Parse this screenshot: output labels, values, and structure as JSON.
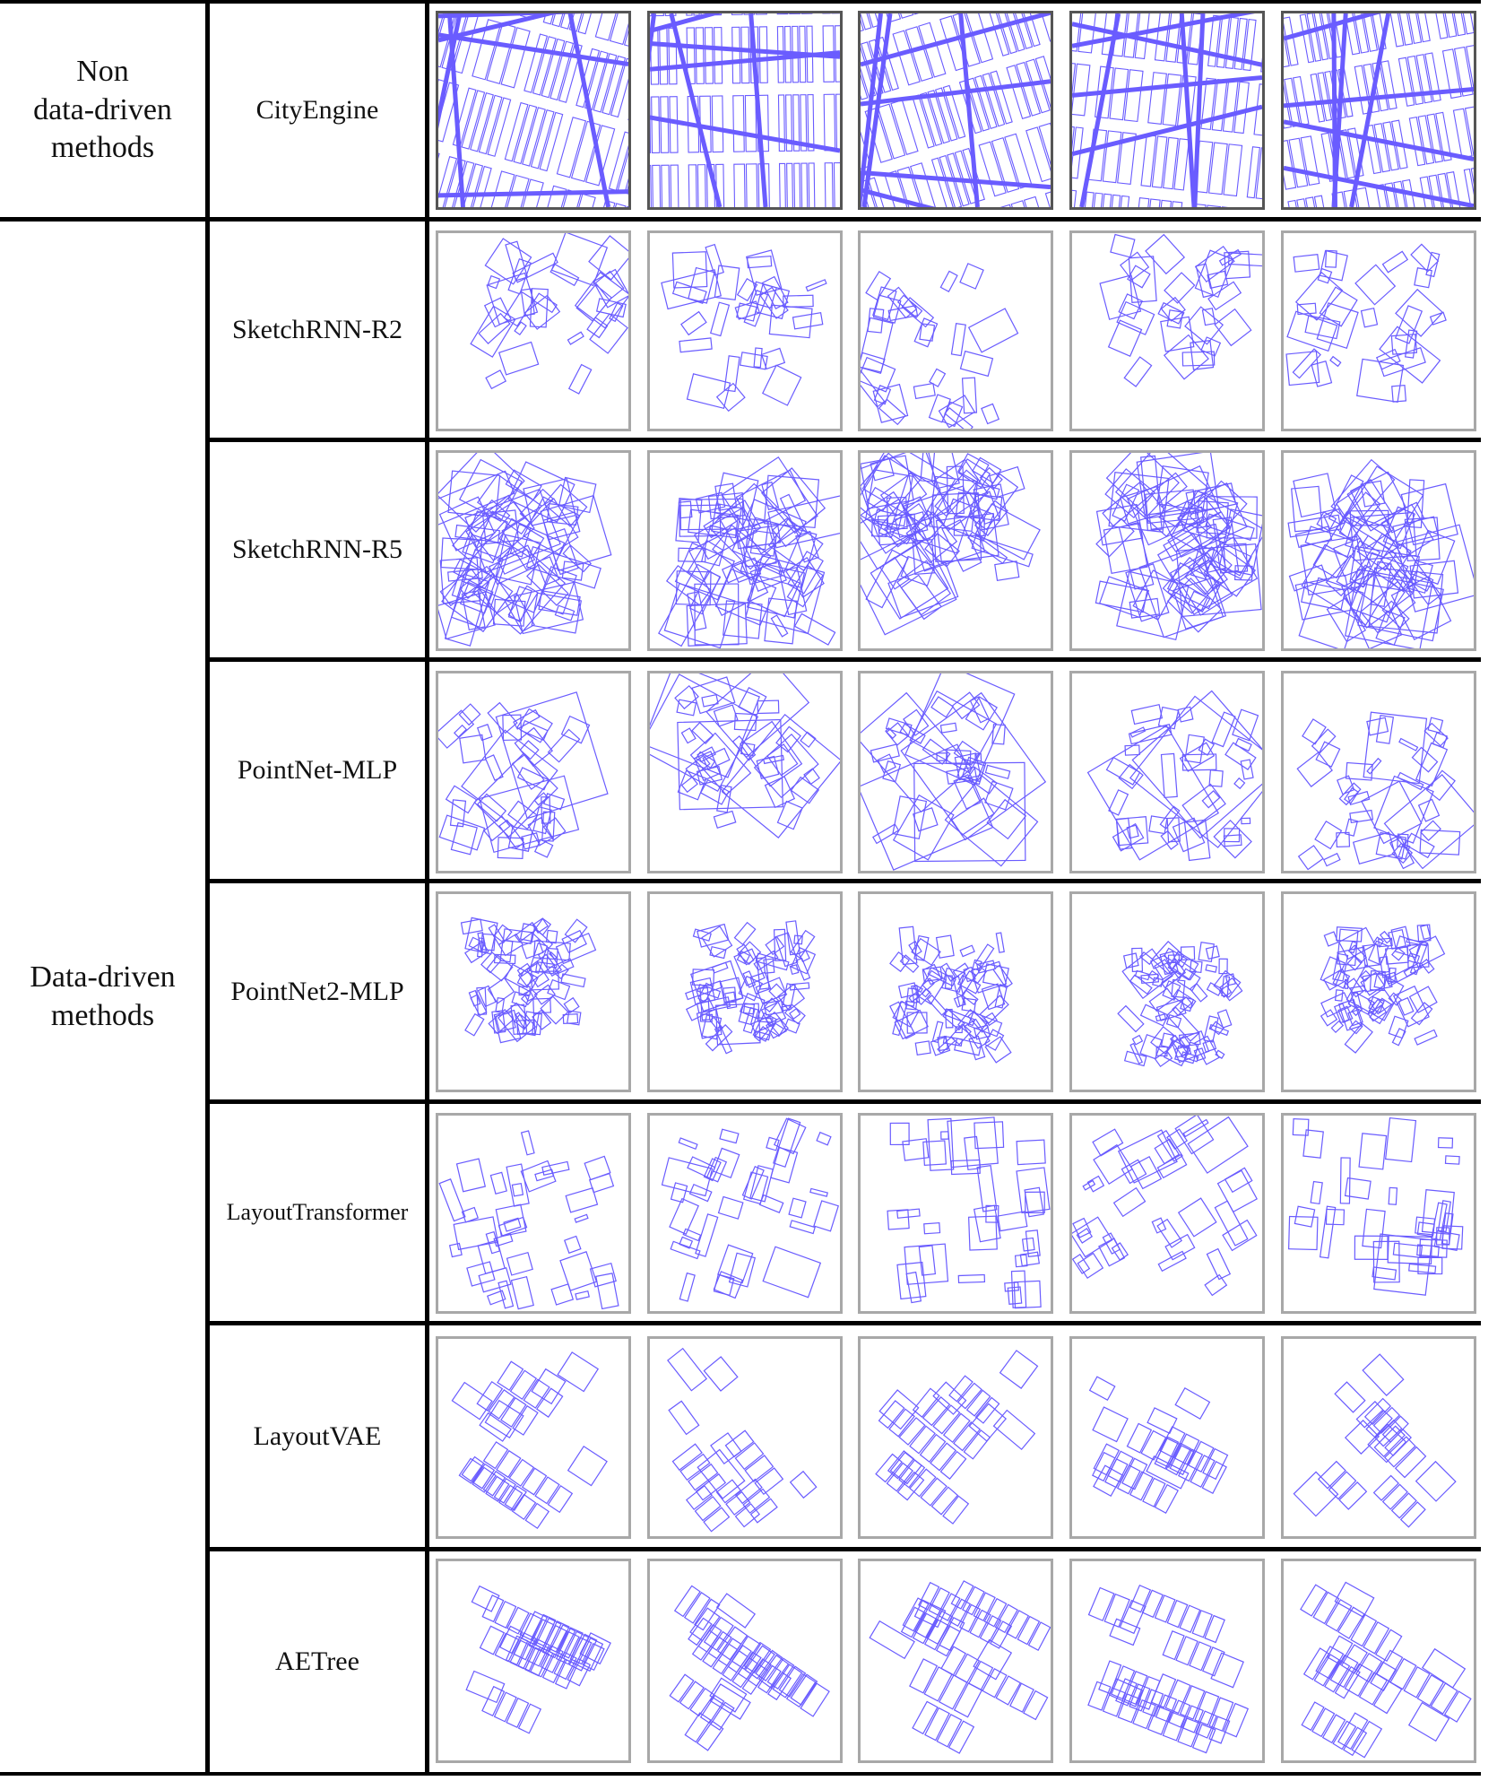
{
  "groups": [
    {
      "label": "Non\ndata-driven\nmethods"
    },
    {
      "label": "Data-driven\nmethods"
    }
  ],
  "methods": [
    {
      "name": "CityEngine",
      "kind": "city"
    },
    {
      "name": "SketchRNN-R2",
      "kind": "sketch_r2"
    },
    {
      "name": "SketchRNN-R5",
      "kind": "sketch_r5"
    },
    {
      "name": "PointNet-MLP",
      "kind": "pointnet"
    },
    {
      "name": "PointNet2-MLP",
      "kind": "pointnet2"
    },
    {
      "name": "LayoutTransformer",
      "kind": "transformer"
    },
    {
      "name": "LayoutVAE",
      "kind": "vae"
    },
    {
      "name": "AETree",
      "kind": "aetree"
    }
  ],
  "samples_per_method": 5,
  "colors": {
    "stroke": "#6a5cff",
    "road": "#6a5cff",
    "panel_border": "#a8a8a8",
    "rule": "#000000"
  }
}
